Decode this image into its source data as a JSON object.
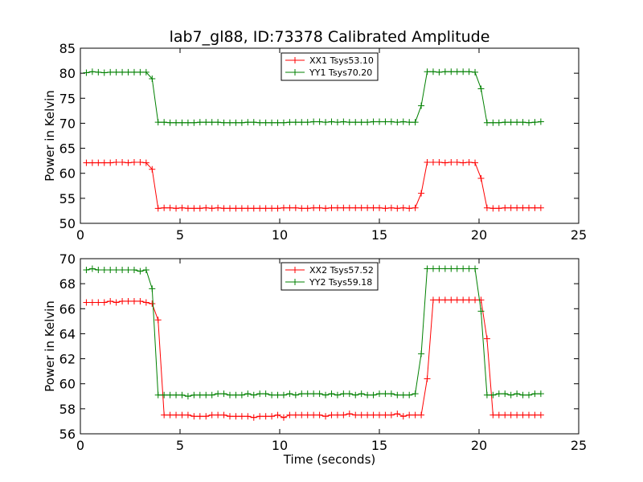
{
  "chart_data": [
    {
      "type": "line",
      "title": "lab7_gl88, ID:73378 Calibrated Amplitude",
      "xlabel": "",
      "ylabel": "Power in Kelvin",
      "xlim": [
        0,
        25
      ],
      "ylim": [
        50,
        85
      ],
      "xticks": [
        "0",
        "5",
        "10",
        "15",
        "20",
        "25"
      ],
      "yticks": [
        "50",
        "55",
        "60",
        "65",
        "70",
        "75",
        "80",
        "85"
      ],
      "grid": false,
      "legend_position": "top-center",
      "x": [
        0.3,
        0.6,
        0.9,
        1.2,
        1.5,
        1.8,
        2.1,
        2.4,
        2.7,
        3.0,
        3.3,
        3.6,
        3.9,
        4.2,
        4.5,
        4.8,
        5.1,
        5.4,
        5.7,
        6.0,
        6.3,
        6.6,
        6.9,
        7.2,
        7.5,
        7.8,
        8.1,
        8.4,
        8.7,
        9.0,
        9.3,
        9.6,
        9.9,
        10.2,
        10.5,
        10.8,
        11.1,
        11.4,
        11.7,
        12.0,
        12.3,
        12.6,
        12.9,
        13.2,
        13.5,
        13.8,
        14.1,
        14.4,
        14.7,
        15.0,
        15.3,
        15.6,
        15.9,
        16.2,
        16.5,
        16.8,
        17.1,
        17.4,
        17.7,
        18.0,
        18.3,
        18.6,
        18.9,
        19.2,
        19.5,
        19.8,
        20.1,
        20.4,
        20.7,
        21.0,
        21.3,
        21.6,
        21.9,
        22.2,
        22.5,
        22.8,
        23.1
      ],
      "series": [
        {
          "name": "XX1 Tsys53.10",
          "color": "#ff0000",
          "values": [
            62.1,
            62.1,
            62.1,
            62.1,
            62.1,
            62.2,
            62.2,
            62.1,
            62.2,
            62.2,
            62.1,
            60.8,
            53.0,
            53.1,
            53.1,
            53.0,
            53.1,
            53.0,
            53.0,
            53.0,
            53.1,
            53.0,
            53.1,
            53.0,
            53.0,
            53.0,
            53.0,
            53.0,
            53.0,
            53.0,
            53.0,
            53.0,
            53.0,
            53.1,
            53.1,
            53.1,
            53.0,
            53.0,
            53.1,
            53.1,
            53.0,
            53.1,
            53.1,
            53.1,
            53.1,
            53.1,
            53.1,
            53.1,
            53.1,
            53.1,
            53.0,
            53.1,
            53.0,
            53.1,
            53.0,
            53.1,
            56.0,
            62.2,
            62.2,
            62.2,
            62.1,
            62.2,
            62.2,
            62.1,
            62.2,
            62.1,
            59.0,
            53.1,
            53.0,
            53.0,
            53.1,
            53.1,
            53.1,
            53.1,
            53.1,
            53.1,
            53.1
          ]
        },
        {
          "name": "YY1 Tsys70.20",
          "color": "#008000",
          "values": [
            80.1,
            80.3,
            80.2,
            80.1,
            80.2,
            80.2,
            80.2,
            80.2,
            80.2,
            80.2,
            80.2,
            78.9,
            70.2,
            70.2,
            70.1,
            70.1,
            70.1,
            70.1,
            70.1,
            70.2,
            70.2,
            70.2,
            70.2,
            70.1,
            70.1,
            70.1,
            70.1,
            70.2,
            70.2,
            70.1,
            70.1,
            70.1,
            70.1,
            70.1,
            70.2,
            70.2,
            70.2,
            70.2,
            70.3,
            70.3,
            70.2,
            70.3,
            70.2,
            70.3,
            70.2,
            70.2,
            70.2,
            70.2,
            70.3,
            70.3,
            70.3,
            70.3,
            70.2,
            70.3,
            70.2,
            70.2,
            73.5,
            80.3,
            80.3,
            80.2,
            80.3,
            80.3,
            80.3,
            80.3,
            80.3,
            80.2,
            76.9,
            70.1,
            70.1,
            70.1,
            70.2,
            70.2,
            70.2,
            70.2,
            70.1,
            70.2,
            70.3
          ]
        }
      ]
    },
    {
      "type": "line",
      "title": "",
      "xlabel": "Time (seconds)",
      "ylabel": "Power in Kelvin",
      "xlim": [
        0,
        25
      ],
      "ylim": [
        56,
        70
      ],
      "xticks": [
        "0",
        "5",
        "10",
        "15",
        "20",
        "25"
      ],
      "yticks": [
        "56",
        "58",
        "60",
        "62",
        "64",
        "66",
        "68",
        "70"
      ],
      "grid": false,
      "legend_position": "top-center",
      "x": [
        0.3,
        0.6,
        0.9,
        1.2,
        1.5,
        1.8,
        2.1,
        2.4,
        2.7,
        3.0,
        3.3,
        3.6,
        3.9,
        4.2,
        4.5,
        4.8,
        5.1,
        5.4,
        5.7,
        6.0,
        6.3,
        6.6,
        6.9,
        7.2,
        7.5,
        7.8,
        8.1,
        8.4,
        8.7,
        9.0,
        9.3,
        9.6,
        9.9,
        10.2,
        10.5,
        10.8,
        11.1,
        11.4,
        11.7,
        12.0,
        12.3,
        12.6,
        12.9,
        13.2,
        13.5,
        13.8,
        14.1,
        14.4,
        14.7,
        15.0,
        15.3,
        15.6,
        15.9,
        16.2,
        16.5,
        16.8,
        17.1,
        17.4,
        17.7,
        18.0,
        18.3,
        18.6,
        18.9,
        19.2,
        19.5,
        19.8,
        20.1,
        20.4,
        20.7,
        21.0,
        21.3,
        21.6,
        21.9,
        22.2,
        22.5,
        22.8,
        23.1
      ],
      "series": [
        {
          "name": "XX2 Tsys57.52",
          "color": "#ff0000",
          "values": [
            66.5,
            66.5,
            66.5,
            66.5,
            66.6,
            66.5,
            66.6,
            66.6,
            66.6,
            66.6,
            66.5,
            66.4,
            65.1,
            57.5,
            57.5,
            57.5,
            57.5,
            57.5,
            57.4,
            57.4,
            57.4,
            57.5,
            57.5,
            57.5,
            57.4,
            57.4,
            57.4,
            57.4,
            57.3,
            57.4,
            57.4,
            57.4,
            57.5,
            57.3,
            57.5,
            57.5,
            57.5,
            57.5,
            57.5,
            57.5,
            57.4,
            57.5,
            57.5,
            57.5,
            57.6,
            57.5,
            57.5,
            57.5,
            57.5,
            57.5,
            57.5,
            57.5,
            57.6,
            57.4,
            57.5,
            57.5,
            57.5,
            60.4,
            66.7,
            66.7,
            66.7,
            66.7,
            66.7,
            66.7,
            66.7,
            66.7,
            66.7,
            63.6,
            57.5,
            57.5,
            57.5,
            57.5,
            57.5,
            57.5,
            57.5,
            57.5,
            57.5
          ]
        },
        {
          "name": "YY2 Tsys59.18",
          "color": "#008000",
          "values": [
            69.1,
            69.2,
            69.1,
            69.1,
            69.1,
            69.1,
            69.1,
            69.1,
            69.1,
            69.0,
            69.1,
            67.6,
            59.1,
            59.1,
            59.1,
            59.1,
            59.1,
            59.0,
            59.1,
            59.1,
            59.1,
            59.1,
            59.2,
            59.2,
            59.1,
            59.1,
            59.1,
            59.2,
            59.1,
            59.2,
            59.2,
            59.1,
            59.1,
            59.1,
            59.2,
            59.1,
            59.2,
            59.2,
            59.2,
            59.2,
            59.1,
            59.2,
            59.1,
            59.2,
            59.2,
            59.1,
            59.2,
            59.1,
            59.1,
            59.2,
            59.2,
            59.2,
            59.1,
            59.1,
            59.1,
            59.2,
            62.4,
            69.2,
            69.2,
            69.2,
            69.2,
            69.2,
            69.2,
            69.2,
            69.2,
            69.2,
            65.8,
            59.1,
            59.1,
            59.2,
            59.2,
            59.1,
            59.2,
            59.1,
            59.1,
            59.2,
            59.2
          ]
        }
      ]
    }
  ]
}
